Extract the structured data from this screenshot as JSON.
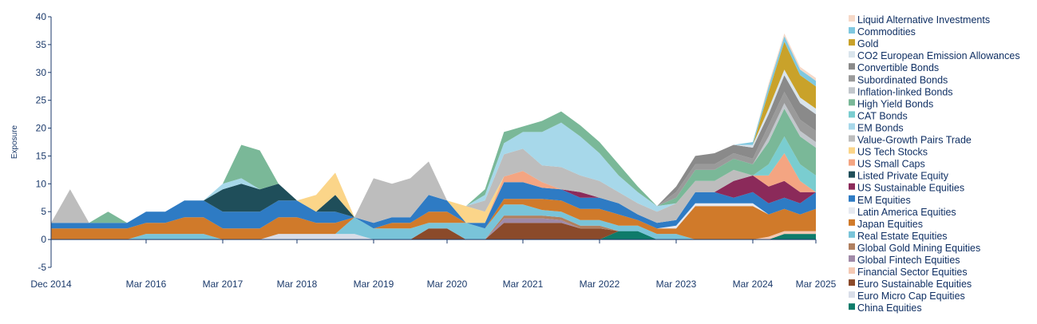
{
  "chart_data": {
    "type": "area",
    "stacked": true,
    "ylabel": "Exposure",
    "ylim": [
      -5,
      40
    ],
    "y_ticks": [
      -5,
      0,
      5,
      10,
      15,
      20,
      25,
      30,
      35,
      40
    ],
    "x_ticks": [
      "Dec 2014",
      "Mar 2016",
      "Mar 2017",
      "Mar 2018",
      "Mar 2019",
      "Mar 2020",
      "Mar 2021",
      "Mar 2022",
      "Mar 2023",
      "Mar 2024",
      "Mar 2025"
    ],
    "legend_position": "right",
    "x": [
      "2014-12",
      "2015-03",
      "2015-06",
      "2015-09",
      "2015-12",
      "2016-03",
      "2016-06",
      "2016-09",
      "2016-12",
      "2017-03",
      "2017-06",
      "2017-09",
      "2017-12",
      "2018-03",
      "2018-06",
      "2018-09",
      "2018-12",
      "2019-03",
      "2019-06",
      "2019-09",
      "2019-12",
      "2020-03",
      "2020-06",
      "2020-09",
      "2020-12",
      "2021-03",
      "2021-06",
      "2021-09",
      "2021-12",
      "2022-03",
      "2022-06",
      "2022-09",
      "2022-12",
      "2023-03",
      "2023-06",
      "2023-09",
      "2023-12",
      "2024-03",
      "2024-06",
      "2024-09",
      "2024-12",
      "2025-03"
    ],
    "series": [
      {
        "name": "Liquid Alternative Investments",
        "color": "#f6d9c8",
        "values": [
          0,
          0,
          0,
          0,
          0,
          0,
          0,
          0,
          0,
          0,
          0,
          0,
          0,
          0,
          0,
          0,
          0,
          0,
          0,
          0,
          0,
          0,
          0,
          0,
          0,
          0,
          0,
          0,
          0,
          0,
          0,
          0,
          0,
          0,
          0,
          0,
          0,
          0,
          0.5,
          0.5,
          0.5,
          0.5
        ]
      },
      {
        "name": "Commodities",
        "color": "#7fc8e0",
        "values": [
          0,
          0,
          0,
          0,
          0,
          0,
          0,
          0,
          0,
          0,
          0,
          0,
          0,
          0,
          0,
          0,
          0,
          0,
          0,
          0,
          0,
          0,
          0,
          0,
          0,
          0,
          0,
          0,
          0,
          0,
          0,
          0,
          0,
          0,
          0,
          0,
          0,
          0.5,
          1,
          1,
          1,
          1
        ]
      },
      {
        "name": "Gold",
        "color": "#c9a22a",
        "values": [
          0,
          0,
          0,
          0,
          0,
          0,
          0,
          0,
          0,
          0,
          0,
          0,
          0,
          0,
          0,
          0,
          0,
          0,
          0,
          0,
          0,
          0,
          0,
          0,
          0,
          0,
          0,
          0,
          0,
          0,
          0,
          0,
          0,
          0,
          0,
          0,
          0,
          0,
          3,
          5,
          4,
          4
        ]
      },
      {
        "name": "CO2 European Emission Allowances",
        "color": "#d9e4ec",
        "values": [
          0,
          0,
          0,
          0,
          0,
          0,
          0,
          0,
          0,
          0,
          0,
          0,
          0,
          0,
          0,
          0,
          0,
          0,
          0,
          0,
          0,
          0,
          0,
          0,
          0,
          0,
          0,
          0,
          0,
          0,
          0,
          0,
          0,
          0,
          0,
          0,
          0,
          0.5,
          1,
          1,
          1,
          1
        ]
      },
      {
        "name": "Convertible Bonds",
        "color": "#8a8a8a",
        "values": [
          0,
          0,
          0,
          0,
          0,
          0,
          0,
          0,
          0,
          0,
          0,
          0,
          0,
          0,
          0,
          0,
          0,
          0,
          0,
          0,
          0,
          0,
          0,
          0,
          0,
          0,
          0,
          0,
          0,
          0,
          0,
          0,
          0,
          1,
          1.5,
          2,
          1.5,
          2,
          2,
          3,
          3,
          3
        ]
      },
      {
        "name": "Subordinated Bonds",
        "color": "#9a9a9a",
        "values": [
          0,
          0,
          0,
          0,
          0,
          0,
          0,
          0,
          0,
          0,
          0,
          0,
          0,
          0,
          0,
          0,
          0,
          0,
          0,
          0,
          0,
          0,
          0,
          0,
          0,
          0,
          0,
          0,
          0,
          0,
          0,
          0,
          0,
          1,
          1,
          1,
          1,
          1,
          2,
          2,
          2,
          2
        ]
      },
      {
        "name": "Inflation-linked Bonds",
        "color": "#c2c7cc",
        "values": [
          0,
          0,
          0,
          0,
          0,
          0,
          0,
          0,
          0,
          0,
          0,
          0,
          0,
          0,
          0,
          0,
          0,
          0,
          0,
          0,
          0,
          0,
          0,
          0,
          0,
          0,
          0,
          0,
          0,
          0,
          0,
          0,
          0,
          0,
          0,
          0,
          0,
          0,
          1,
          1,
          1,
          1
        ]
      },
      {
        "name": "High Yield Bonds",
        "color": "#7ab898",
        "values": [
          0,
          0,
          0,
          2,
          0,
          0,
          0,
          0,
          0,
          0,
          6,
          7,
          0,
          0,
          0,
          0,
          0,
          0,
          0,
          0,
          0,
          0,
          0,
          1,
          2,
          1,
          2,
          2,
          2,
          2,
          2,
          1,
          0,
          1,
          2,
          2,
          2,
          2,
          4,
          5,
          5,
          5
        ]
      },
      {
        "name": "CAT Bonds",
        "color": "#7acdd0",
        "values": [
          0,
          0,
          0,
          0,
          0,
          0,
          0,
          0,
          0,
          0,
          0,
          0,
          0,
          0,
          0,
          0,
          0,
          0,
          0,
          0,
          0,
          0,
          0,
          0,
          0,
          0,
          0,
          0,
          0,
          0,
          0,
          0,
          0,
          0,
          0,
          0,
          0,
          0,
          2,
          3,
          3,
          3
        ]
      },
      {
        "name": "EM Bonds",
        "color": "#a7d8ea",
        "values": [
          0,
          0,
          0,
          0,
          0,
          0,
          0,
          0,
          0,
          1,
          1,
          0,
          0,
          0,
          0,
          0,
          0,
          0,
          0,
          0,
          0,
          0,
          0,
          1,
          2,
          3,
          6,
          8,
          7,
          5,
          3,
          2,
          1,
          0,
          0,
          0,
          0,
          0,
          0,
          0,
          0,
          0
        ]
      },
      {
        "name": "Value-Growth Pairs Trade",
        "color": "#bdbdbd",
        "values": [
          0,
          6,
          0,
          0,
          0,
          0,
          0,
          0,
          0,
          0,
          0,
          0,
          0,
          0,
          0,
          0,
          0,
          8,
          6,
          7,
          6,
          0,
          0,
          2,
          4,
          4,
          3,
          4,
          3,
          3,
          2,
          2,
          2,
          3,
          2,
          2,
          2,
          0,
          0,
          0,
          0,
          0
        ]
      },
      {
        "name": "US Tech Stocks",
        "color": "#fbd589",
        "values": [
          0,
          0,
          0,
          0,
          0,
          0,
          0,
          0,
          0,
          0,
          0,
          0,
          0,
          0,
          3,
          4,
          0,
          0,
          0,
          0,
          0,
          0,
          3,
          2,
          0,
          0,
          0,
          0,
          0,
          0,
          0,
          0,
          0,
          0,
          0,
          0,
          0,
          0,
          0,
          0,
          0,
          0
        ]
      },
      {
        "name": "US Small Caps",
        "color": "#f4a582",
        "values": [
          0,
          0,
          0,
          0,
          0,
          0,
          0,
          0,
          0,
          0,
          0,
          0,
          0,
          0,
          0,
          0,
          0,
          0,
          0,
          0,
          0,
          0,
          0,
          0,
          1,
          2,
          1,
          0,
          0,
          0,
          0,
          0,
          0,
          0,
          0,
          0,
          0,
          0,
          2,
          5,
          2,
          0
        ]
      },
      {
        "name": "Listed Private Equity",
        "color": "#1f4e5a",
        "values": [
          0,
          0,
          0,
          0,
          0,
          0,
          0,
          0,
          0,
          4,
          5,
          4,
          3,
          0,
          0,
          3,
          0,
          0,
          0,
          0,
          0,
          0,
          0,
          0,
          0,
          0,
          0,
          0,
          0,
          0,
          0,
          0,
          0,
          0,
          0,
          0,
          0,
          0,
          0,
          0,
          0,
          0
        ]
      },
      {
        "name": "US Sustainable Equities",
        "color": "#8b2a5a",
        "values": [
          0,
          0,
          0,
          0,
          0,
          0,
          0,
          0,
          0,
          0,
          0,
          0,
          0,
          0,
          0,
          0,
          0,
          0,
          0,
          0,
          0,
          0,
          0,
          0,
          0,
          0,
          0,
          0,
          1,
          0,
          0,
          0,
          0,
          0,
          0,
          0,
          3,
          3,
          3,
          3,
          2,
          0
        ]
      },
      {
        "name": "EM Equities",
        "color": "#2e7bc4",
        "values": [
          1,
          1,
          1,
          1,
          1,
          2,
          2,
          3,
          3,
          3,
          3,
          3,
          3,
          3,
          2,
          2,
          0,
          1,
          1,
          1,
          3,
          2,
          0,
          1,
          3,
          3,
          2,
          2,
          2,
          2,
          2,
          1,
          1,
          1,
          2,
          2,
          1,
          2,
          2,
          2,
          2,
          3
        ]
      },
      {
        "name": "Latin America Equities",
        "color": "#e6e9f0",
        "values": [
          0,
          0,
          0,
          0,
          0,
          0,
          0,
          0,
          0,
          0,
          0,
          0,
          0,
          0,
          0,
          0,
          0,
          0,
          0,
          0,
          0,
          0,
          0,
          0,
          0,
          0,
          0,
          0,
          0,
          0,
          0,
          0,
          0,
          0.5,
          0.5,
          0.5,
          0.5,
          0.5,
          0,
          0,
          0,
          0
        ]
      },
      {
        "name": "Japan Equities",
        "color": "#d07a2a",
        "values": [
          2,
          2,
          2,
          2,
          2,
          2,
          2,
          3,
          3,
          2,
          2,
          2,
          3,
          3,
          2,
          2,
          0,
          0,
          1,
          1,
          2,
          2,
          0,
          0,
          1,
          1,
          2,
          2,
          2,
          2,
          2,
          1,
          1,
          1,
          6,
          6,
          6,
          6,
          4,
          4,
          3,
          4
        ]
      },
      {
        "name": "Real Estate Equities",
        "color": "#79c4d9",
        "values": [
          0,
          0,
          0,
          0,
          0,
          1,
          1,
          1,
          1,
          0,
          0,
          0,
          0,
          0,
          0,
          0,
          3,
          2,
          2,
          2,
          1,
          1,
          3,
          2,
          2,
          2,
          1,
          1,
          1,
          1,
          1,
          1,
          1,
          1,
          0,
          0,
          0,
          0,
          0,
          0,
          0,
          0
        ]
      },
      {
        "name": "Global Gold Mining Equities",
        "color": "#b08060",
        "values": [
          0,
          0,
          0,
          0,
          0,
          0,
          0,
          0,
          0,
          0,
          0,
          0,
          0,
          0,
          0,
          0,
          0,
          0,
          0,
          0,
          0,
          0,
          0,
          0,
          0.5,
          0.5,
          0.5,
          0.5,
          0.5,
          0.5,
          0,
          0,
          0,
          0,
          0,
          0,
          0,
          0,
          0,
          0,
          0,
          0
        ]
      },
      {
        "name": "Global Fintech Equities",
        "color": "#a08aa8",
        "values": [
          0,
          0,
          0,
          0,
          0,
          0,
          0,
          0,
          0,
          0,
          0,
          0,
          0,
          0,
          0,
          0,
          0,
          0,
          0,
          0,
          0,
          0,
          0,
          0,
          0.8,
          0.8,
          0.8,
          0.5,
          0,
          0,
          0,
          0,
          0,
          0,
          0,
          0,
          0,
          0,
          0,
          0,
          0,
          0
        ]
      },
      {
        "name": "Financial Sector Equities",
        "color": "#f4c9b4",
        "values": [
          0,
          0,
          0,
          0,
          0,
          0,
          0,
          0,
          0,
          0,
          0,
          0,
          0,
          0,
          0,
          0,
          0,
          0,
          0,
          0,
          0,
          0,
          0,
          0,
          0,
          0,
          0,
          0,
          0,
          0,
          0,
          0,
          0,
          0,
          0,
          0,
          0,
          0,
          0.5,
          0.5,
          0.5,
          0.5
        ]
      },
      {
        "name": "Euro Sustainable Equities",
        "color": "#8b4a2a",
        "values": [
          0,
          0,
          0,
          0,
          0,
          0,
          0,
          0,
          0,
          0,
          0,
          0,
          0,
          0,
          0,
          0,
          0,
          0,
          0,
          0,
          2,
          2,
          0,
          0,
          3,
          3,
          3,
          3,
          2,
          2,
          0,
          0,
          0,
          0,
          0,
          0,
          0,
          0,
          0,
          0,
          0,
          0
        ]
      },
      {
        "name": "Euro Micro Cap Equities",
        "color": "#d8dde8",
        "values": [
          0,
          0,
          0,
          0,
          0,
          0,
          0,
          0,
          0,
          0,
          0,
          0,
          1,
          1,
          1,
          1,
          1,
          0,
          0,
          0,
          0,
          0,
          0,
          0,
          0,
          0,
          0,
          0,
          0,
          0,
          0,
          0,
          0,
          0,
          0,
          0,
          0,
          0,
          0,
          0,
          0,
          0
        ]
      },
      {
        "name": "China Equities",
        "color": "#0e7b6a",
        "values": [
          0,
          0,
          0,
          0,
          0,
          0,
          0,
          0,
          0,
          0,
          0,
          0,
          0,
          0,
          0,
          0,
          0,
          0,
          0,
          0,
          0,
          0,
          0,
          0,
          0,
          0,
          0,
          0,
          0,
          0,
          1.5,
          1.5,
          0,
          0,
          0,
          0,
          0,
          0,
          0,
          1,
          1,
          1
        ]
      }
    ]
  }
}
